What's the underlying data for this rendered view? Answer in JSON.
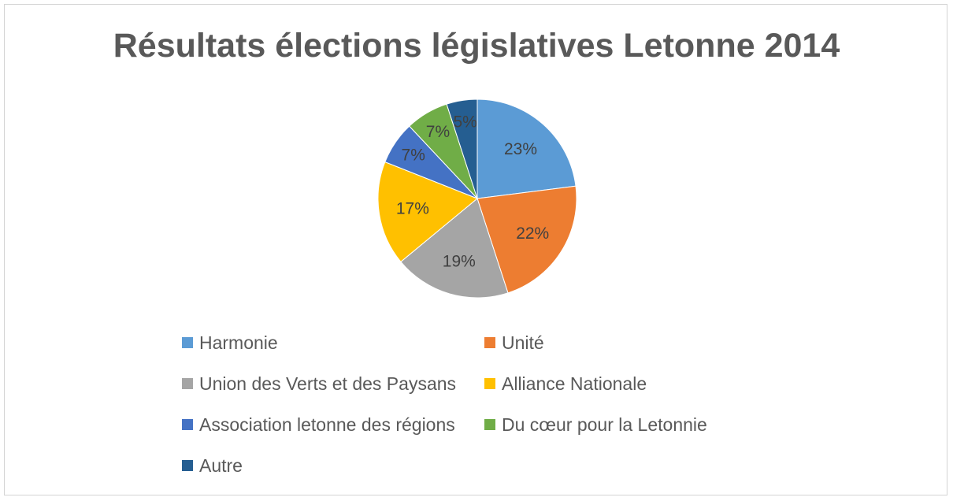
{
  "chart_data": {
    "type": "pie",
    "title": "Résultats élections législatives Letonne 2014",
    "categories": [
      "Harmonie",
      "Unité",
      "Union des Verts et des Paysans",
      "Alliance Nationale",
      "Association letonne des régions",
      "Du cœur pour la Letonnie",
      "Autre"
    ],
    "values": [
      23,
      22,
      19,
      17,
      7,
      7,
      5
    ],
    "data_labels": [
      "23%",
      "22%",
      "19%",
      "17%",
      "7%",
      "7%",
      "5%"
    ],
    "colors": [
      "#5B9BD5",
      "#ED7D31",
      "#A5A5A5",
      "#FFC000",
      "#4472C4",
      "#70AD47",
      "#255E91"
    ],
    "legend_position": "bottom",
    "start_angle": "12 o'clock",
    "direction": "clockwise"
  }
}
